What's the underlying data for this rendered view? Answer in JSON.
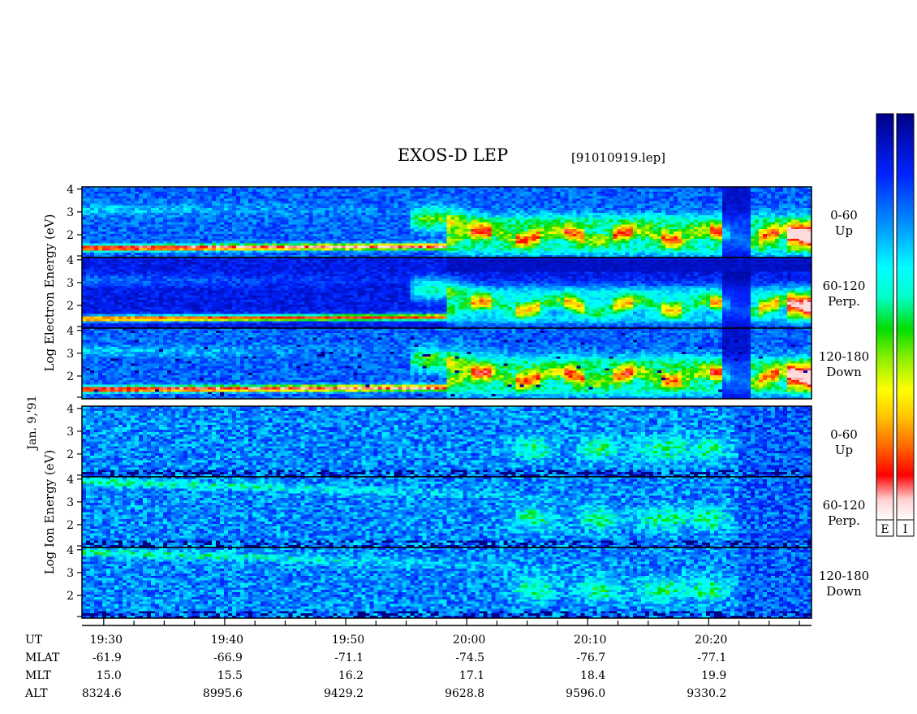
{
  "title": "EXOS-D LEP",
  "file_label": "[91010919.lep]",
  "date_label": "Jan. 9,'91",
  "colorbar_labels": [
    "E",
    "I"
  ],
  "chart_data": [
    {
      "type": "heatmap",
      "name": "Electron",
      "ylabel": [
        "Log",
        "Electron",
        "Energy",
        "(eV)"
      ],
      "y_ticks": [
        "4",
        "3",
        "2"
      ],
      "y_tick_values": [
        4,
        3,
        2
      ],
      "ylim": [
        1,
        4.1
      ],
      "panels": [
        {
          "label_line1": "0-60",
          "label_line2": "Up"
        },
        {
          "label_line1": "60-120",
          "label_line2": "Perp."
        },
        {
          "label_line1": "120-180",
          "label_line2": "Down"
        }
      ]
    },
    {
      "type": "heatmap",
      "name": "Ion",
      "ylabel": [
        "Log",
        "Ion",
        "Energy",
        "(eV)"
      ],
      "y_ticks": [
        "4",
        "3",
        "2"
      ],
      "y_tick_values": [
        4,
        3,
        2
      ],
      "ylim": [
        1,
        4.1
      ],
      "panels": [
        {
          "label_line1": "0-60",
          "label_line2": "Up"
        },
        {
          "label_line1": "60-120",
          "label_line2": "Perp."
        },
        {
          "label_line1": "120-180",
          "label_line2": "Down"
        }
      ]
    }
  ],
  "x_axis": {
    "row_labels": [
      "UT",
      "MLAT",
      "MLT",
      "ALT"
    ],
    "columns": [
      {
        "time": "19:30",
        "minutes": 0,
        "mlat": "-61.9",
        "mlt": "15.0",
        "alt": "8324.6"
      },
      {
        "time": "19:40",
        "minutes": 10,
        "mlat": "-66.9",
        "mlt": "15.5",
        "alt": "8995.6"
      },
      {
        "time": "19:50",
        "minutes": 20,
        "mlat": "-71.1",
        "mlt": "16.2",
        "alt": "9429.2"
      },
      {
        "time": "20:00",
        "minutes": 30,
        "mlat": "-74.5",
        "mlt": "17.1",
        "alt": "9628.8"
      },
      {
        "time": "20:10",
        "minutes": 40,
        "mlat": "-76.7",
        "mlt": "18.4",
        "alt": "9596.0"
      },
      {
        "time": "20:20",
        "minutes": 50,
        "mlat": "-77.1",
        "mlt": "19.9",
        "alt": "9330.2"
      }
    ],
    "xlim_minutes": [
      -1.8,
      58.5
    ],
    "minor_tick_step_minutes": 2.5
  }
}
